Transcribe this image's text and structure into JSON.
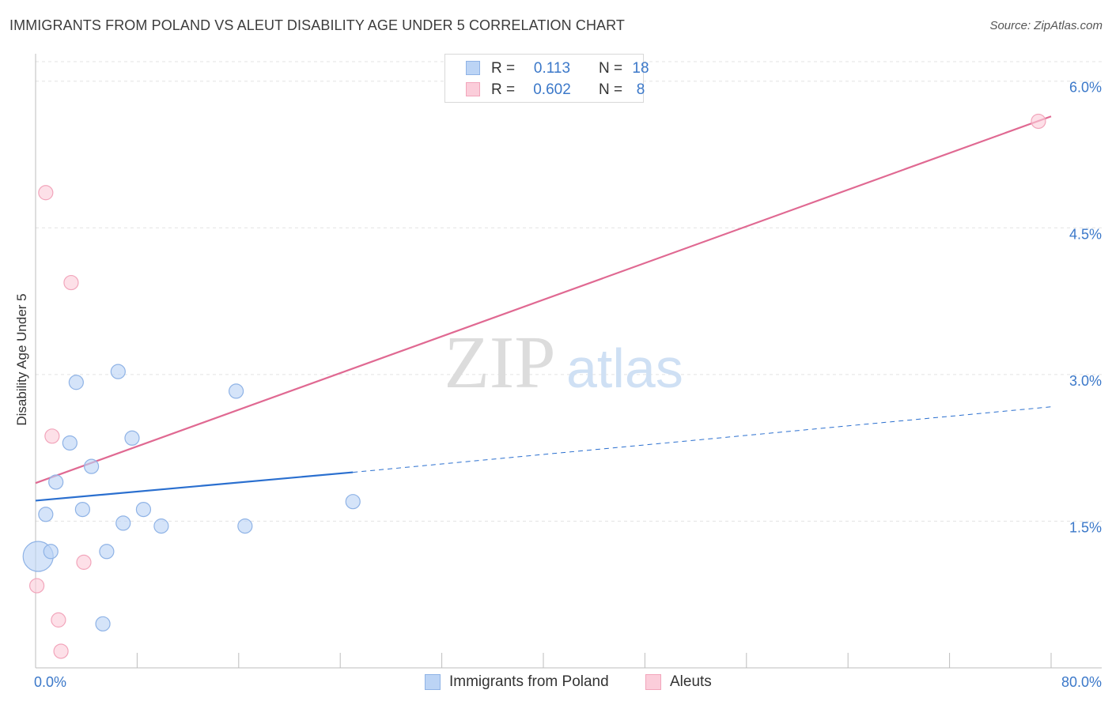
{
  "title": "IMMIGRANTS FROM POLAND VS ALEUT DISABILITY AGE UNDER 5 CORRELATION CHART",
  "source": "Source: ZipAtlas.com",
  "watermark": {
    "zip": "ZIP",
    "atlas": "atlas"
  },
  "colors": {
    "blue_fill": "#bcd4f5",
    "blue_stroke": "#8fb3e6",
    "blue_line": "#2a6fcf",
    "pink_fill": "#fbcdda",
    "pink_stroke": "#f2a5bb",
    "pink_line": "#e06992",
    "tick_label": "#3b78c9",
    "grid": "#e3e3e3"
  },
  "legend": {
    "rows": [
      {
        "r_label": "R =",
        "r_value": "0.113",
        "n_label": "N =",
        "n_value": "18"
      },
      {
        "r_label": "R =",
        "r_value": "0.602",
        "n_label": "N =",
        "n_value": "8"
      }
    ]
  },
  "bottom_legend": [
    "Immigrants from Poland",
    "Aleuts"
  ],
  "chart_data": {
    "type": "scatter",
    "title": "IMMIGRANTS FROM POLAND VS ALEUT DISABILITY AGE UNDER 5 CORRELATION CHART",
    "xlabel": "",
    "ylabel": "Disability Age Under 5",
    "xlim": [
      0,
      80
    ],
    "ylim": [
      0,
      6.2
    ],
    "x_tick_labels": {
      "min": "0.0%",
      "max": "80.0%"
    },
    "y_ticks": [
      1.5,
      3.0,
      4.5,
      6.0
    ],
    "y_tick_labels": [
      "1.5%",
      "3.0%",
      "4.5%",
      "6.0%"
    ],
    "series": [
      {
        "name": "Immigrants from Poland",
        "r": 0.113,
        "n": 18,
        "points": [
          {
            "x": 0.2,
            "y": 1.14,
            "size": "large"
          },
          {
            "x": 0.8,
            "y": 1.57
          },
          {
            "x": 1.2,
            "y": 1.19
          },
          {
            "x": 1.6,
            "y": 1.9
          },
          {
            "x": 2.7,
            "y": 2.3
          },
          {
            "x": 3.2,
            "y": 2.92
          },
          {
            "x": 3.7,
            "y": 1.62
          },
          {
            "x": 4.4,
            "y": 2.06
          },
          {
            "x": 5.3,
            "y": 0.45
          },
          {
            "x": 5.6,
            "y": 1.19
          },
          {
            "x": 6.5,
            "y": 3.03
          },
          {
            "x": 6.9,
            "y": 1.48
          },
          {
            "x": 7.6,
            "y": 2.35
          },
          {
            "x": 8.5,
            "y": 1.62
          },
          {
            "x": 9.9,
            "y": 1.45
          },
          {
            "x": 16.5,
            "y": 1.45
          },
          {
            "x": 15.8,
            "y": 2.83
          },
          {
            "x": 25.0,
            "y": 1.7
          }
        ],
        "trend": {
          "x0": 0,
          "y0": 1.71,
          "x1": 25,
          "y1": 2.0,
          "dashed_to_x": 80,
          "dashed_to_y": 2.67
        }
      },
      {
        "name": "Aleuts",
        "r": 0.602,
        "n": 8,
        "points": [
          {
            "x": 0.1,
            "y": 0.84
          },
          {
            "x": 0.8,
            "y": 4.86
          },
          {
            "x": 1.3,
            "y": 2.37
          },
          {
            "x": 1.8,
            "y": 0.49
          },
          {
            "x": 2.0,
            "y": 0.17
          },
          {
            "x": 2.8,
            "y": 3.94
          },
          {
            "x": 3.8,
            "y": 1.08
          },
          {
            "x": 79.0,
            "y": 5.59
          }
        ],
        "trend": {
          "x0": 0,
          "y0": 1.89,
          "x1": 80,
          "y1": 5.64
        }
      }
    ]
  }
}
